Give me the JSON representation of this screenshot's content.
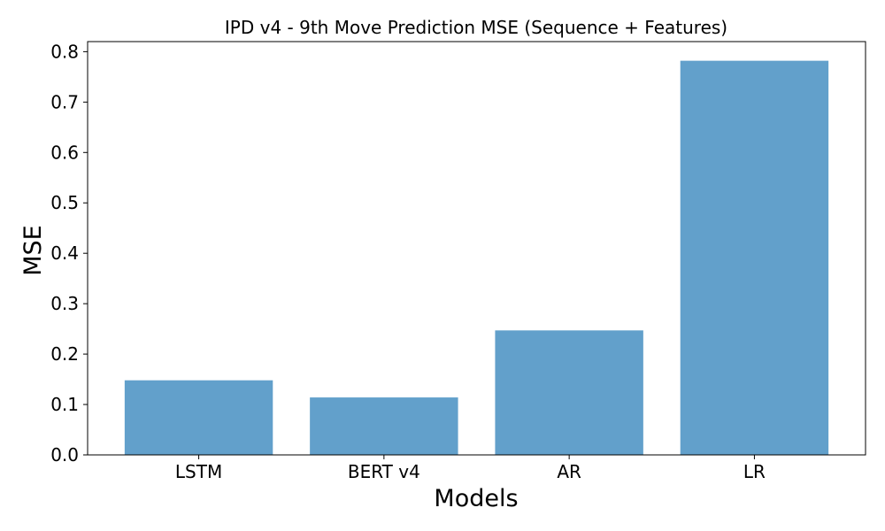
{
  "chart_data": {
    "type": "bar",
    "title": "IPD v4 - 9th Move Prediction MSE (Sequence + Features)",
    "xlabel": "Models",
    "ylabel": "MSE",
    "categories": [
      "LSTM",
      "BERT v4",
      "AR",
      "LR"
    ],
    "values": [
      0.148,
      0.114,
      0.247,
      0.782
    ],
    "ylim": [
      0,
      0.82
    ],
    "yticks": [
      0.0,
      0.1,
      0.2,
      0.3,
      0.4,
      0.5,
      0.6,
      0.7,
      0.8
    ],
    "ytick_labels": [
      "0.0",
      "0.1",
      "0.2",
      "0.3",
      "0.4",
      "0.5",
      "0.6",
      "0.7",
      "0.8"
    ],
    "grid": false,
    "bar_color": "#62a0cb"
  }
}
